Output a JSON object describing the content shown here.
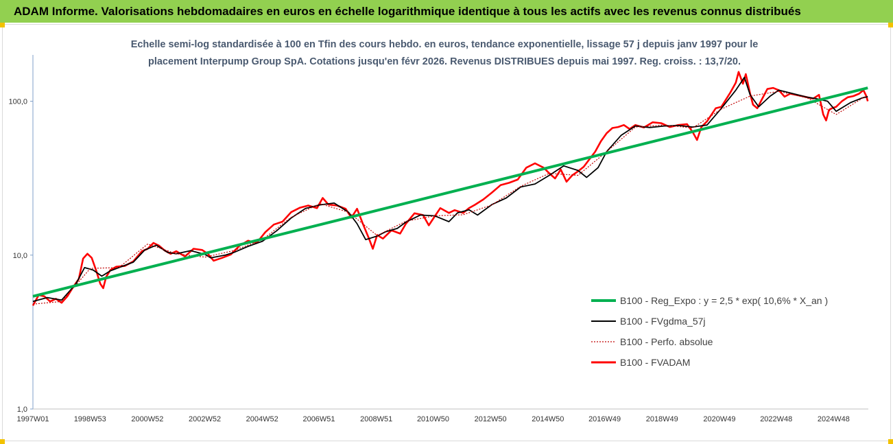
{
  "header": {
    "title": "ADAM Informe. Valorisations hebdomadaires en euros en échelle logarithmique identique à tous les actifs avec les revenus connus distribués"
  },
  "chart_data": {
    "type": "line",
    "title_lines": [
      "Echelle semi-log standardisée à 100 en Tfin des cours hebdo. en euros, tendance exponentielle, lissage 57 j depuis janv 1997 pour le",
      "placement Interpump Group SpA. Cotations jusqu'en févr 2026. Revenus DISTRIBUES depuis mai 1997. Reg. croiss. : 13,7/20."
    ],
    "yscale": "log",
    "ylim": [
      1,
      200
    ],
    "yticks": [
      {
        "v": 1,
        "label": "1,0"
      },
      {
        "v": 10,
        "label": "10,0"
      },
      {
        "v": 100,
        "label": "100,0"
      }
    ],
    "xlim": [
      1997.0,
      2026.12
    ],
    "xticks": [
      {
        "t": 1997.0,
        "label": "1997W01"
      },
      {
        "t": 1998.99,
        "label": "1998W53"
      },
      {
        "t": 2000.99,
        "label": "2000W52"
      },
      {
        "t": 2002.99,
        "label": "2002W52"
      },
      {
        "t": 2004.99,
        "label": "2004W52"
      },
      {
        "t": 2006.97,
        "label": "2006W51"
      },
      {
        "t": 2008.97,
        "label": "2008W51"
      },
      {
        "t": 2010.95,
        "label": "2010W50"
      },
      {
        "t": 2012.95,
        "label": "2012W50"
      },
      {
        "t": 2014.95,
        "label": "2014W50"
      },
      {
        "t": 2016.93,
        "label": "2016W49"
      },
      {
        "t": 2018.93,
        "label": "2018W49"
      },
      {
        "t": 2020.93,
        "label": "2020W49"
      },
      {
        "t": 2022.91,
        "label": "2022W48"
      },
      {
        "t": 2024.91,
        "label": "2024W48"
      }
    ],
    "legend_position": "bottom-right",
    "series": [
      {
        "name": "B100 - Reg_Expo : y = 2,5 * exp( 10,6% *  X_an )",
        "color": "#00b050",
        "style": "solid",
        "x": [
          1997.0,
          2026.1
        ],
        "y": [
          5.4,
          122
        ]
      },
      {
        "name": "B100 - FVgdma_57j",
        "color": "#000000",
        "style": "solid",
        "x": [
          1997.0,
          1997.5,
          1998.0,
          1998.5,
          1998.8,
          1999.1,
          1999.4,
          1999.7,
          2000.0,
          2000.5,
          2000.9,
          2001.3,
          2001.7,
          2002.0,
          2002.5,
          2003.0,
          2003.2,
          2003.7,
          2004.0,
          2004.5,
          2005.0,
          2005.5,
          2006.0,
          2006.5,
          2007.0,
          2007.5,
          2008.0,
          2008.3,
          2008.6,
          2009.0,
          2009.3,
          2009.7,
          2010.0,
          2010.5,
          2011.0,
          2011.5,
          2011.8,
          2012.2,
          2012.5,
          2013.0,
          2013.5,
          2014.0,
          2014.5,
          2015.0,
          2015.5,
          2016.0,
          2016.3,
          2016.7,
          2017.0,
          2017.5,
          2018.0,
          2018.5,
          2019.0,
          2019.5,
          2020.0,
          2020.5,
          2021.0,
          2021.5,
          2021.8,
          2022.0,
          2022.3,
          2022.7,
          2023.0,
          2023.5,
          2024.0,
          2024.3,
          2024.7,
          2025.0,
          2025.5,
          2025.9,
          2026.1
        ],
        "y": [
          5.0,
          5.3,
          5.1,
          6.5,
          8.3,
          8.0,
          7.3,
          7.9,
          8.3,
          9.0,
          10.8,
          11.6,
          10.4,
          10.2,
          10.7,
          10.1,
          9.6,
          10.0,
          10.4,
          11.4,
          12.3,
          14.4,
          17.4,
          20.1,
          21.2,
          21.8,
          19.0,
          16.0,
          12.6,
          13.3,
          14.2,
          14.9,
          16.4,
          18.2,
          18.0,
          16.5,
          18.8,
          19.7,
          18.2,
          21.3,
          23.5,
          27.7,
          29.0,
          33.0,
          38.0,
          35.5,
          32.0,
          37.0,
          47.0,
          60.0,
          69.0,
          67.5,
          69.0,
          69.5,
          68.0,
          70.0,
          90.0,
          118.0,
          143.0,
          110.0,
          92.0,
          108.0,
          118.0,
          112.0,
          106.0,
          104.0,
          100.0,
          86.0,
          98.0,
          105.0,
          107.0
        ]
      },
      {
        "name": "B100 - Perfo. absolue",
        "color": "#c00000",
        "style": "dotted",
        "x": [
          1997.0,
          1998.0,
          1999.0,
          2000.0,
          2001.0,
          2002.0,
          2003.0,
          2004.0,
          2005.0,
          2006.0,
          2007.0,
          2008.0,
          2009.0,
          2010.0,
          2011.0,
          2012.0,
          2013.0,
          2014.0,
          2015.0,
          2016.0,
          2017.0,
          2018.0,
          2019.0,
          2020.0,
          2021.0,
          2022.0,
          2023.0,
          2024.0,
          2025.0,
          2026.0
        ],
        "y": [
          4.8,
          5.0,
          8.2,
          8.3,
          11.8,
          10.2,
          9.7,
          10.7,
          12.6,
          17.6,
          21.6,
          19.0,
          13.4,
          16.6,
          18.0,
          18.3,
          21.2,
          28.0,
          34.0,
          33.0,
          47.0,
          68.0,
          70.0,
          67.0,
          89.0,
          108.0,
          116.0,
          105.0,
          82.0,
          107.0
        ]
      },
      {
        "name": "B100 - FVADAM",
        "color": "#ff0000",
        "style": "solid",
        "x": [
          1997.0,
          1997.2,
          1997.4,
          1997.6,
          1997.8,
          1998.0,
          1998.2,
          1998.4,
          1998.6,
          1998.75,
          1998.9,
          1999.05,
          1999.2,
          1999.35,
          1999.45,
          1999.55,
          1999.7,
          1999.9,
          2000.2,
          2000.5,
          2000.8,
          2001.0,
          2001.2,
          2001.4,
          2001.6,
          2001.8,
          2002.0,
          2002.3,
          2002.6,
          2002.9,
          2003.1,
          2003.3,
          2003.6,
          2003.9,
          2004.2,
          2004.5,
          2004.8,
          2005.1,
          2005.4,
          2005.7,
          2006.0,
          2006.3,
          2006.6,
          2006.9,
          2007.1,
          2007.3,
          2007.6,
          2007.9,
          2008.1,
          2008.3,
          2008.5,
          2008.7,
          2008.85,
          2009.0,
          2009.2,
          2009.5,
          2009.8,
          2010.0,
          2010.3,
          2010.6,
          2010.8,
          2011.0,
          2011.2,
          2011.5,
          2011.7,
          2012.0,
          2012.2,
          2012.4,
          2012.7,
          2013.0,
          2013.3,
          2013.6,
          2013.9,
          2014.2,
          2014.5,
          2014.8,
          2015.0,
          2015.2,
          2015.4,
          2015.6,
          2015.8,
          2016.0,
          2016.2,
          2016.4,
          2016.6,
          2016.8,
          2017.0,
          2017.2,
          2017.4,
          2017.6,
          2017.8,
          2018.0,
          2018.3,
          2018.6,
          2018.9,
          2019.2,
          2019.5,
          2019.8,
          2020.0,
          2020.15,
          2020.3,
          2020.5,
          2020.8,
          2021.0,
          2021.3,
          2021.5,
          2021.6,
          2021.75,
          2021.85,
          2022.0,
          2022.1,
          2022.25,
          2022.4,
          2022.6,
          2022.8,
          2023.0,
          2023.2,
          2023.4,
          2023.6,
          2023.8,
          2024.0,
          2024.2,
          2024.4,
          2024.55,
          2024.65,
          2024.75,
          2024.85,
          2025.0,
          2025.2,
          2025.4,
          2025.6,
          2025.8,
          2025.95,
          2026.05,
          2026.1
        ],
        "y": [
          4.7,
          5.5,
          5.4,
          5.0,
          5.2,
          4.9,
          5.4,
          6.2,
          7.0,
          9.5,
          10.2,
          9.6,
          8.0,
          6.5,
          6.1,
          7.2,
          8.0,
          8.4,
          8.5,
          9.1,
          10.6,
          11.0,
          12.0,
          11.5,
          10.7,
          10.2,
          10.6,
          9.8,
          11.0,
          10.8,
          10.2,
          9.2,
          9.6,
          10.1,
          11.5,
          12.4,
          12.0,
          14.1,
          15.8,
          16.5,
          19.0,
          20.3,
          21.0,
          20.2,
          23.5,
          21.3,
          21.0,
          20.0,
          17.5,
          20.0,
          16.0,
          13.0,
          11.0,
          13.5,
          12.8,
          14.5,
          13.8,
          16.0,
          18.7,
          18.2,
          15.6,
          17.8,
          20.2,
          18.8,
          19.6,
          18.8,
          20.2,
          21.2,
          23.0,
          25.5,
          28.5,
          29.5,
          31.0,
          37.0,
          39.5,
          37.0,
          34.0,
          31.5,
          36.0,
          30.0,
          33.0,
          35.0,
          37.5,
          42.0,
          47.0,
          55.0,
          62.0,
          67.0,
          68.0,
          70.0,
          66.0,
          70.0,
          67.5,
          73.0,
          72.0,
          68.0,
          70.0,
          71.0,
          63.0,
          56.0,
          68.0,
          74.0,
          90.0,
          92.0,
          113.0,
          132.0,
          155.0,
          130.0,
          150.0,
          112.0,
          95.0,
          90.0,
          102.0,
          120.0,
          122.0,
          118.0,
          107.0,
          112.0,
          110.0,
          108.0,
          106.0,
          104.0,
          110.0,
          82.0,
          75.0,
          88.0,
          90.0,
          92.0,
          100.0,
          106.0,
          108.0,
          112.0,
          118.0,
          108.0,
          100.0
        ]
      }
    ]
  }
}
